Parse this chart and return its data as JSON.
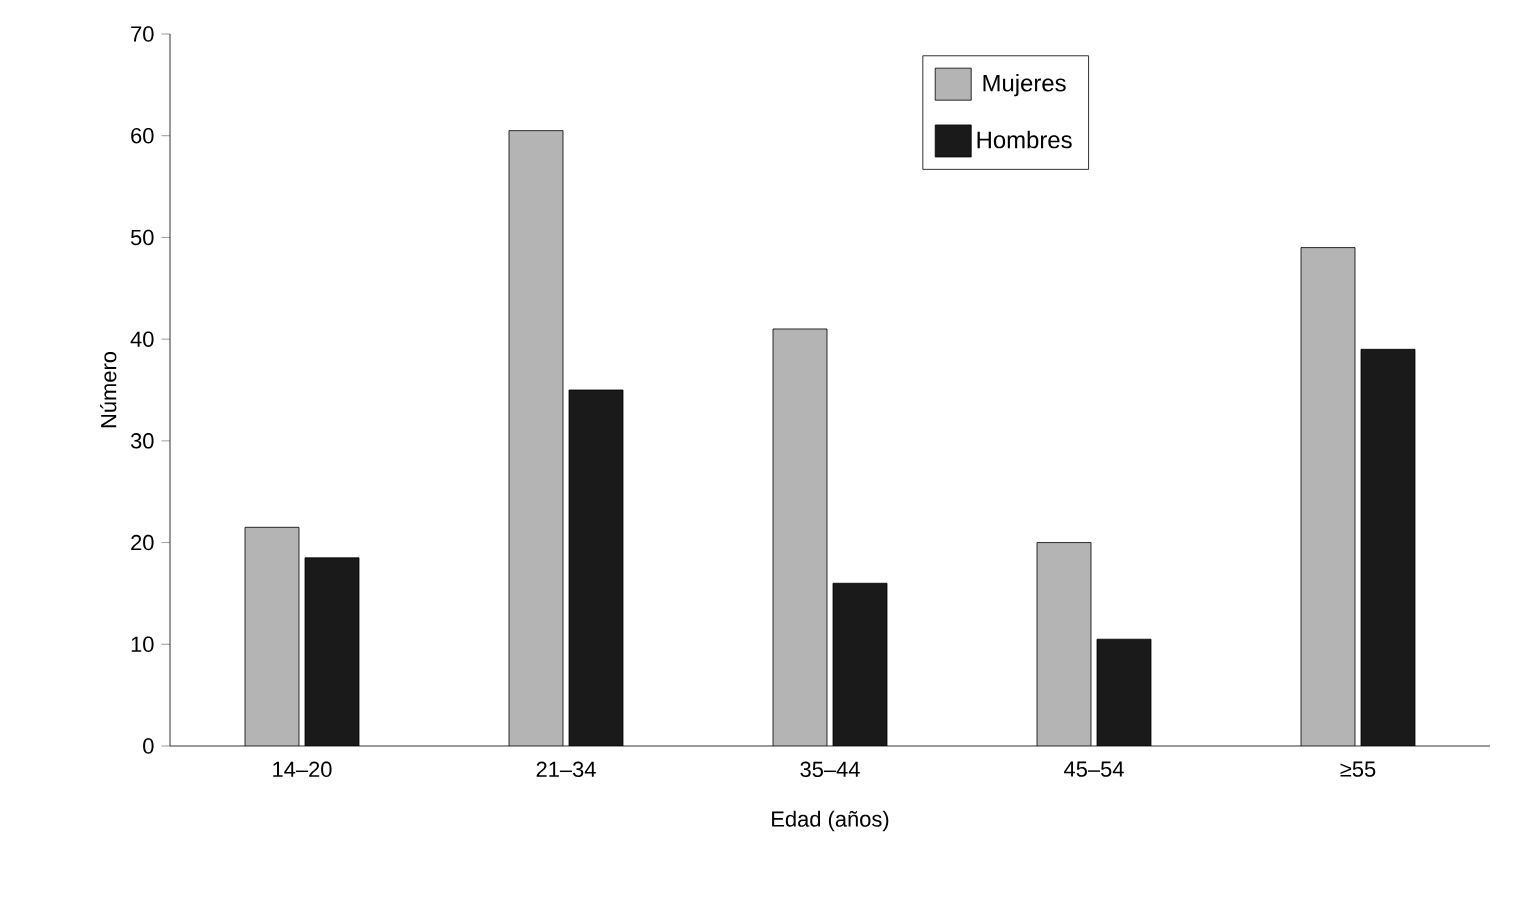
{
  "chart_data": {
    "type": "bar",
    "xlabel": "Edad (años)",
    "ylabel": "Número",
    "categories": [
      "14–20",
      "21–34",
      "35–44",
      "45–54",
      "≥55"
    ],
    "series": [
      {
        "name": "Mujeres",
        "color": "#b4b4b4",
        "values": [
          21.5,
          60.5,
          41,
          20,
          49
        ]
      },
      {
        "name": "Hombres",
        "color": "#1a1a1a",
        "values": [
          18.5,
          35,
          16,
          10.5,
          39
        ]
      }
    ],
    "ylim": [
      0,
      70
    ],
    "yticks": [
      0,
      10,
      20,
      30,
      40,
      50,
      60,
      70
    ],
    "grid": false,
    "legend": "top right"
  }
}
